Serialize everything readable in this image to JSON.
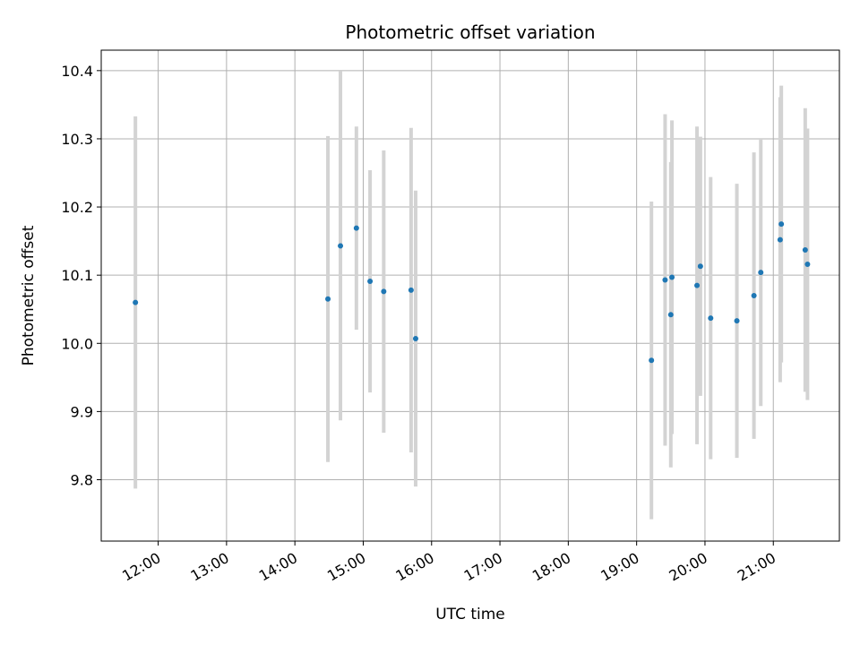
{
  "chart_data": {
    "type": "scatter",
    "title": "Photometric offset variation",
    "xlabel": "UTC time",
    "ylabel": "Photometric offset",
    "x_ticks": [
      "12:00",
      "13:00",
      "14:00",
      "15:00",
      "16:00",
      "17:00",
      "18:00",
      "19:00",
      "20:00",
      "21:00"
    ],
    "y_ticks": [
      "9.8",
      "9.9",
      "10.0",
      "10.1",
      "10.2",
      "10.3",
      "10.4"
    ],
    "xlim": [
      "11:10",
      "21:58"
    ],
    "ylim": [
      9.71,
      10.43
    ],
    "grid": true,
    "point_color": "#1f77b4",
    "errorbar_color": "#d3d3d3",
    "series": [
      {
        "points": [
          {
            "x": "11:40",
            "y": 10.06,
            "err": 0.273
          },
          {
            "x": "14:29",
            "y": 10.065,
            "err": 0.239
          },
          {
            "x": "14:40",
            "y": 10.143,
            "err": 0.256
          },
          {
            "x": "14:54",
            "y": 10.169,
            "err": 0.149
          },
          {
            "x": "15:06",
            "y": 10.091,
            "err": 0.163
          },
          {
            "x": "15:18",
            "y": 10.076,
            "err": 0.207
          },
          {
            "x": "15:42",
            "y": 10.078,
            "err": 0.238
          },
          {
            "x": "15:46",
            "y": 10.007,
            "err": 0.217
          },
          {
            "x": "19:13",
            "y": 9.975,
            "err": 0.233
          },
          {
            "x": "19:25",
            "y": 10.093,
            "err": 0.243
          },
          {
            "x": "19:30",
            "y": 10.042,
            "err": 0.224
          },
          {
            "x": "19:31",
            "y": 10.097,
            "err": 0.23
          },
          {
            "x": "19:53",
            "y": 10.085,
            "err": 0.233
          },
          {
            "x": "19:56",
            "y": 10.113,
            "err": 0.19
          },
          {
            "x": "20:05",
            "y": 10.037,
            "err": 0.207
          },
          {
            "x": "20:28",
            "y": 10.033,
            "err": 0.201
          },
          {
            "x": "20:43",
            "y": 10.07,
            "err": 0.21
          },
          {
            "x": "20:49",
            "y": 10.104,
            "err": 0.196
          },
          {
            "x": "21:06",
            "y": 10.152,
            "err": 0.209
          },
          {
            "x": "21:07",
            "y": 10.175,
            "err": 0.203
          },
          {
            "x": "21:28",
            "y": 10.137,
            "err": 0.208
          },
          {
            "x": "21:30",
            "y": 10.116,
            "err": 0.199
          }
        ]
      }
    ]
  }
}
